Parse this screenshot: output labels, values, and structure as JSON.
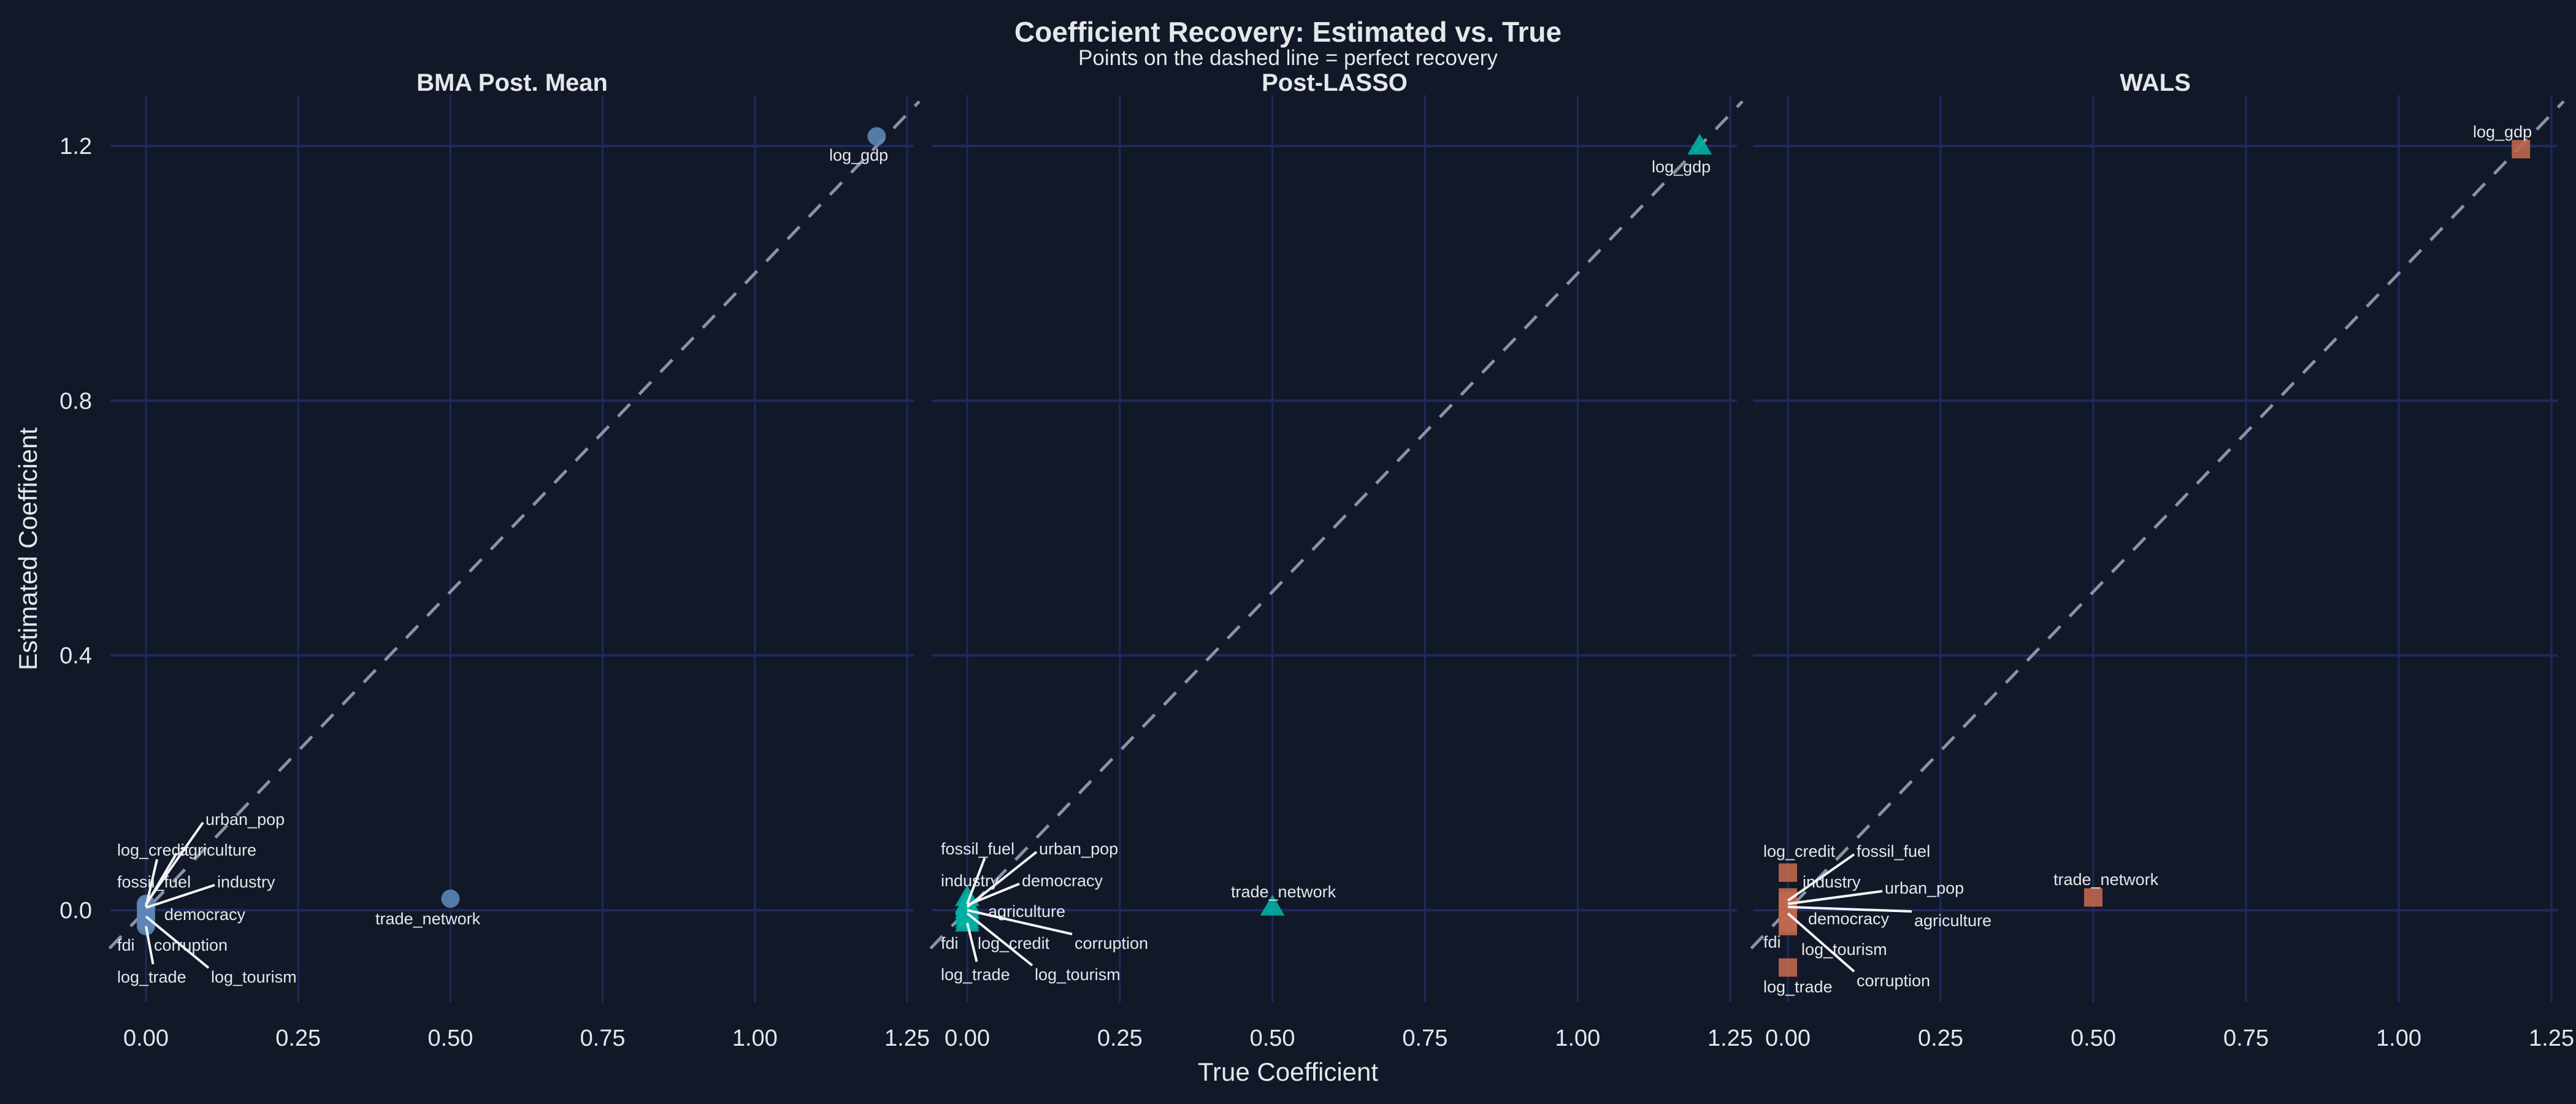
{
  "title": "Coefficient Recovery: Estimated vs. True",
  "subtitle": "Points on the dashed line = perfect recovery",
  "colors": {
    "background": "#111827",
    "grid": "#1e2a5c",
    "identity_line": "#8b92a5",
    "BMA Post. Mean": "#5b86b5",
    "Post-LASSO": "#00b0a4",
    "WALS": "#c0674e",
    "leader": "#f3f4f6"
  },
  "chart_data": [
    {
      "type": "scatter",
      "panel_title": "BMA Post. Mean",
      "marker": "circle",
      "xlabel": "True Coefficient",
      "ylabel": "Estimated Coefficient",
      "xlim": [
        -0.06,
        1.27
      ],
      "ylim": [
        -0.145,
        1.28
      ],
      "xticks": [
        "0.00",
        "0.25",
        "0.50",
        "0.75",
        "1.00",
        "1.25"
      ],
      "yticks": [
        "0.0",
        "0.4",
        "0.8",
        "1.2"
      ],
      "grid": true,
      "reference_line": "y = x (dashed)",
      "points": [
        {
          "label": "log_gdp",
          "true": 1.2,
          "est": 1.215
        },
        {
          "label": "trade_network",
          "true": 0.5,
          "est": 0.018
        },
        {
          "label": "urban_pop",
          "true": 0,
          "est": 0.01
        },
        {
          "label": "log_credit",
          "true": 0,
          "est": 0.005
        },
        {
          "label": "agriculture",
          "true": 0,
          "est": 0.008
        },
        {
          "label": "fossil_fuel",
          "true": 0,
          "est": 0.003
        },
        {
          "label": "industry",
          "true": 0,
          "est": 0.004
        },
        {
          "label": "democracy",
          "true": 0,
          "est": -0.005
        },
        {
          "label": "fdi",
          "true": 0,
          "est": -0.02
        },
        {
          "label": "corruption",
          "true": 0,
          "est": -0.015
        },
        {
          "label": "log_trade",
          "true": 0,
          "est": -0.025
        },
        {
          "label": "log_tourism",
          "true": 0,
          "est": -0.01
        }
      ]
    },
    {
      "type": "scatter",
      "panel_title": "Post-LASSO",
      "marker": "triangle",
      "xlim": [
        -0.06,
        1.27
      ],
      "ylim": [
        -0.145,
        1.28
      ],
      "xticks": [
        "0.00",
        "0.25",
        "0.50",
        "0.75",
        "1.00",
        "1.25"
      ],
      "grid": true,
      "reference_line": "y = x (dashed)",
      "points": [
        {
          "label": "log_gdp",
          "true": 1.2,
          "est": 1.2
        },
        {
          "label": "trade_network",
          "true": 0.5,
          "est": 0.005
        },
        {
          "label": "fossil_fuel",
          "true": 0,
          "est": 0.01
        },
        {
          "label": "urban_pop",
          "true": 0,
          "est": 0.005
        },
        {
          "label": "industry",
          "true": 0,
          "est": 0.02
        },
        {
          "label": "democracy",
          "true": 0,
          "est": 0.008
        },
        {
          "label": "agriculture",
          "true": 0,
          "est": 0.0
        },
        {
          "label": "fdi",
          "true": 0,
          "est": -0.015
        },
        {
          "label": "log_credit",
          "true": 0,
          "est": -0.01
        },
        {
          "label": "corruption",
          "true": 0,
          "est": 0.0
        },
        {
          "label": "log_trade",
          "true": 0,
          "est": -0.02
        },
        {
          "label": "log_tourism",
          "true": 0,
          "est": -0.005
        }
      ]
    },
    {
      "type": "scatter",
      "panel_title": "WALS",
      "marker": "square",
      "xlim": [
        -0.06,
        1.27
      ],
      "ylim": [
        -0.145,
        1.28
      ],
      "xticks": [
        "0.00",
        "0.25",
        "0.50",
        "0.75",
        "1.00",
        "1.25"
      ],
      "grid": true,
      "reference_line": "y = x (dashed)",
      "points": [
        {
          "label": "log_gdp",
          "true": 1.2,
          "est": 1.195
        },
        {
          "label": "trade_network",
          "true": 0.5,
          "est": 0.02
        },
        {
          "label": "log_credit",
          "true": 0,
          "est": 0.059
        },
        {
          "label": "fossil_fuel",
          "true": 0,
          "est": 0.015
        },
        {
          "label": "industry",
          "true": 0,
          "est": 0.02
        },
        {
          "label": "urban_pop",
          "true": 0,
          "est": 0.01
        },
        {
          "label": "democracy",
          "true": 0,
          "est": -0.01
        },
        {
          "label": "agriculture",
          "true": 0,
          "est": 0.005
        },
        {
          "label": "fdi",
          "true": 0,
          "est": -0.025
        },
        {
          "label": "log_tourism",
          "true": 0,
          "est": -0.02
        },
        {
          "label": "corruption",
          "true": 0,
          "est": -0.005
        },
        {
          "label": "log_trade",
          "true": 0,
          "est": -0.09
        }
      ]
    }
  ]
}
